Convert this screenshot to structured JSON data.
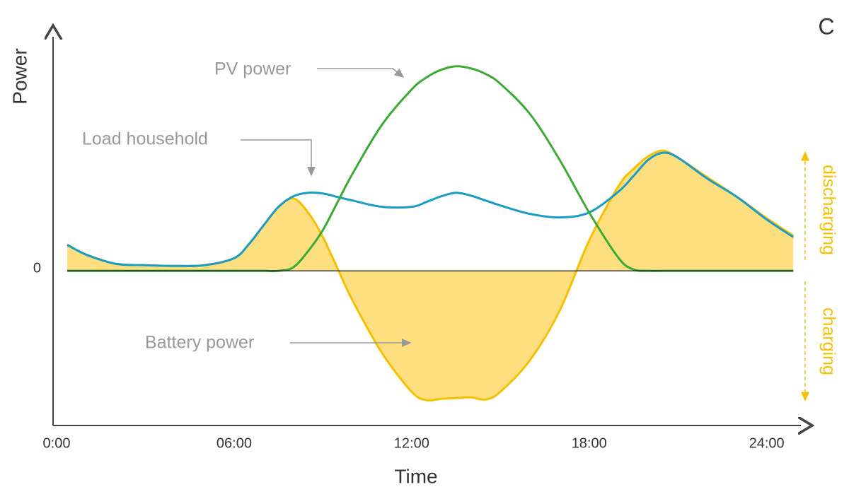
{
  "chart_data": {
    "type": "line",
    "panel_label": "C",
    "xlabel": "Time",
    "ylabel": "Power",
    "x": [
      0.36,
      1,
      2,
      3,
      4,
      5,
      6,
      6.5,
      7,
      7.5,
      8,
      8.5,
      9,
      9.5,
      10,
      11,
      12,
      12.5,
      13,
      13.5,
      14,
      14.5,
      15,
      16,
      17,
      18,
      19,
      19.5,
      20,
      20.5,
      21,
      22,
      23,
      24,
      24.9
    ],
    "series": [
      {
        "name": "Battery power",
        "color": "#f5c000",
        "fill": "#fddf80",
        "values": [
          0.37,
          0.23,
          0.1,
          0.08,
          0.07,
          0.08,
          0.18,
          0.38,
          0.65,
          0.91,
          1.03,
          0.83,
          0.48,
          0.03,
          -0.42,
          -1.17,
          -1.72,
          -1.84,
          -1.82,
          -1.81,
          -1.8,
          -1.83,
          -1.72,
          -1.27,
          -0.57,
          0.43,
          1.21,
          1.45,
          1.63,
          1.71,
          1.61,
          1.33,
          1.05,
          0.75,
          0.5
        ]
      },
      {
        "name": "Load household",
        "color": "#1a9cc4",
        "values": [
          0.37,
          0.23,
          0.1,
          0.08,
          0.07,
          0.08,
          0.18,
          0.38,
          0.65,
          0.91,
          1.06,
          1.11,
          1.1,
          1.05,
          1.0,
          0.91,
          0.91,
          0.98,
          1.06,
          1.11,
          1.07,
          1.0,
          0.93,
          0.81,
          0.76,
          0.83,
          1.13,
          1.35,
          1.58,
          1.68,
          1.61,
          1.31,
          1.05,
          0.73,
          0.48
        ]
      },
      {
        "name": "PV power",
        "color": "#3aaa35",
        "values": [
          0,
          0,
          0,
          0,
          0,
          0,
          0,
          0,
          0,
          0,
          0.05,
          0.28,
          0.58,
          0.98,
          1.38,
          2.08,
          2.58,
          2.75,
          2.86,
          2.91,
          2.88,
          2.8,
          2.66,
          2.23,
          1.58,
          0.83,
          0.18,
          0.02,
          0,
          0,
          0,
          0,
          0,
          0,
          0
        ]
      }
    ],
    "xlim": [
      -0.12,
      25.3
    ],
    "xticks": [
      {
        "value": 0,
        "label": "0:00"
      },
      {
        "value": 6,
        "label": "06:00"
      },
      {
        "value": 12,
        "label": "12:00"
      },
      {
        "value": 18,
        "label": "18:00"
      },
      {
        "value": 24,
        "label": "24:00"
      }
    ],
    "ylim": [
      -2.2,
      3.4
    ],
    "yticks": [
      0
    ],
    "annotations": [
      "discharging",
      "charging"
    ]
  }
}
